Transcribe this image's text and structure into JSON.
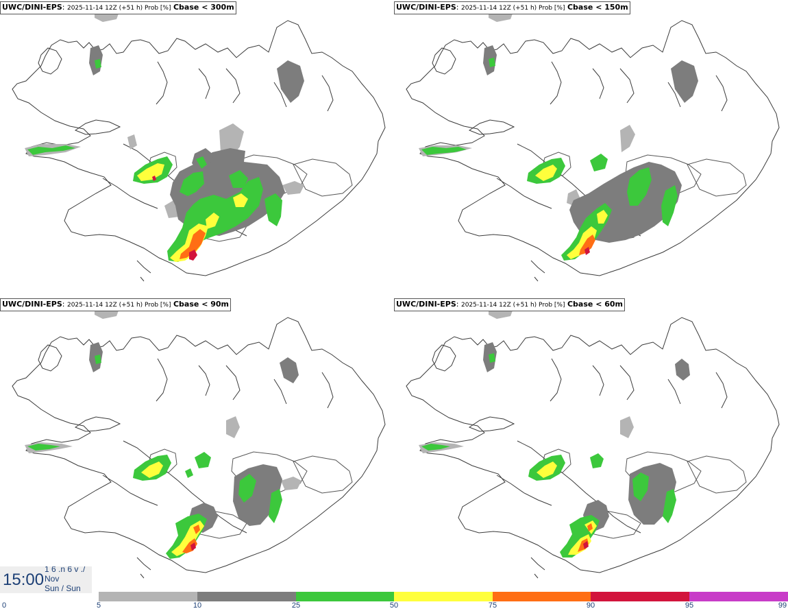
{
  "panels": [
    {
      "source": "UWC/DINI-EPS",
      "separator": ":",
      "meta": "2025-11-14 12Z (+51 h) Prob [%]",
      "field": "Cbase < 300m"
    },
    {
      "source": "UWC/DINI-EPS",
      "separator": ":",
      "meta": "2025-11-14 12Z (+51 h) Prob [%]",
      "field": "Cbase < 150m"
    },
    {
      "source": "UWC/DINI-EPS",
      "separator": ":",
      "meta": "2025-11-14 12Z (+51 h) Prob [%]",
      "field": "Cbase < 90m"
    },
    {
      "source": "UWC/DINI-EPS",
      "separator": ":",
      "meta": "2025-11-14 12Z (+51 h) Prob [%]",
      "field": "Cbase < 60m"
    }
  ],
  "valid_time": {
    "clock": "15:00",
    "date_lines": [
      "1 6 .n 6 v ./",
      "Nov",
      "Sun / Sun"
    ]
  },
  "legend": {
    "ticks": [
      "0",
      "5",
      "10",
      "25",
      "50",
      "75",
      "90",
      "95",
      "99"
    ],
    "colors": [
      "#ffffff",
      "#b4b4b4",
      "#7d7d7d",
      "#3cc83c",
      "#ffff3c",
      "#ff6e14",
      "#d2143c",
      "#c83cc8",
      "#f0c8f0"
    ]
  },
  "map_colors": {
    "coast": "#3a3a3a",
    "glacier_outline": "#555555",
    "p5": "#b4b4b4",
    "p10": "#7d7d7d",
    "p25": "#3cc83c",
    "p50": "#ffff3c",
    "p75": "#ff6e14",
    "p90": "#d2143c"
  }
}
